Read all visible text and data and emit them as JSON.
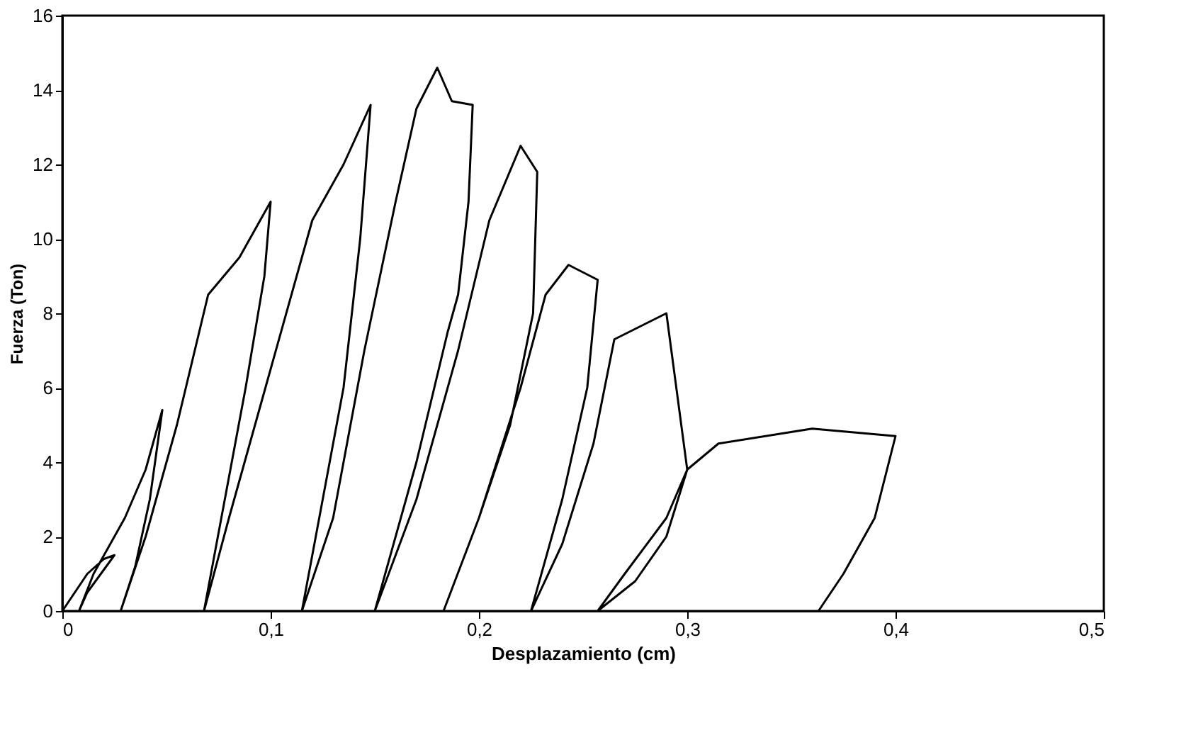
{
  "chart_data": {
    "type": "line",
    "xlabel": "Desplazamiento (cm)",
    "ylabel": "Fuerza (Ton)",
    "x": [
      0,
      0.012,
      0.02,
      0.025,
      0.012,
      0.008,
      0.015,
      0.03,
      0.04,
      0.048,
      0.042,
      0.035,
      0.028,
      0.04,
      0.055,
      0.07,
      0.085,
      0.1,
      0.097,
      0.088,
      0.078,
      0.068,
      0.08,
      0.1,
      0.12,
      0.135,
      0.148,
      0.143,
      0.135,
      0.125,
      0.115,
      0.13,
      0.145,
      0.16,
      0.17,
      0.18,
      0.187,
      0.197,
      0.195,
      0.19,
      0.185,
      0.17,
      0.15,
      0.17,
      0.19,
      0.205,
      0.22,
      0.228,
      0.226,
      0.215,
      0.2,
      0.183,
      0.2,
      0.22,
      0.232,
      0.243,
      0.257,
      0.252,
      0.24,
      0.225,
      0.24,
      0.255,
      0.265,
      0.29,
      0.3,
      0.29,
      0.275,
      0.257,
      0.27,
      0.29,
      0.3,
      0.315,
      0.36,
      0.4,
      0.39,
      0.375,
      0.363
    ],
    "values": [
      0,
      1.0,
      1.4,
      1.5,
      0.5,
      0,
      1.0,
      2.5,
      3.8,
      5.4,
      3.0,
      1.2,
      0,
      2.0,
      5.0,
      8.5,
      9.5,
      11.0,
      9.0,
      6.0,
      3.0,
      0,
      2.5,
      6.5,
      10.5,
      12.0,
      13.6,
      10.0,
      6.0,
      3.0,
      0,
      2.5,
      7.0,
      11.0,
      13.5,
      14.6,
      13.7,
      13.6,
      11.0,
      8.5,
      7.5,
      4.0,
      0,
      3.0,
      7.0,
      10.5,
      12.5,
      11.8,
      8.0,
      5.0,
      2.5,
      0,
      2.5,
      6.0,
      8.5,
      9.3,
      8.9,
      6.0,
      3.0,
      0,
      1.8,
      4.5,
      7.3,
      8.0,
      3.8,
      2.0,
      0.8,
      0,
      1.0,
      2.5,
      3.8,
      4.5,
      4.9,
      4.7,
      2.5,
      1.0,
      0
    ],
    "color": "#000000",
    "marker": "none",
    "line_style": "solid",
    "xlim": [
      0,
      0.5
    ],
    "ylim": [
      0,
      16
    ],
    "xticks": [
      0,
      {
        "value": 0.1,
        "label": "0,1"
      },
      {
        "value": 0.2,
        "label": "0,2"
      },
      {
        "value": 0.3,
        "label": "0,3"
      },
      {
        "value": 0.4,
        "label": "0,4"
      },
      {
        "value": 0.5,
        "label": "0,5"
      }
    ],
    "yticks": [
      0,
      2,
      4,
      6,
      8,
      10,
      12,
      14,
      16
    ],
    "grid": false
  }
}
